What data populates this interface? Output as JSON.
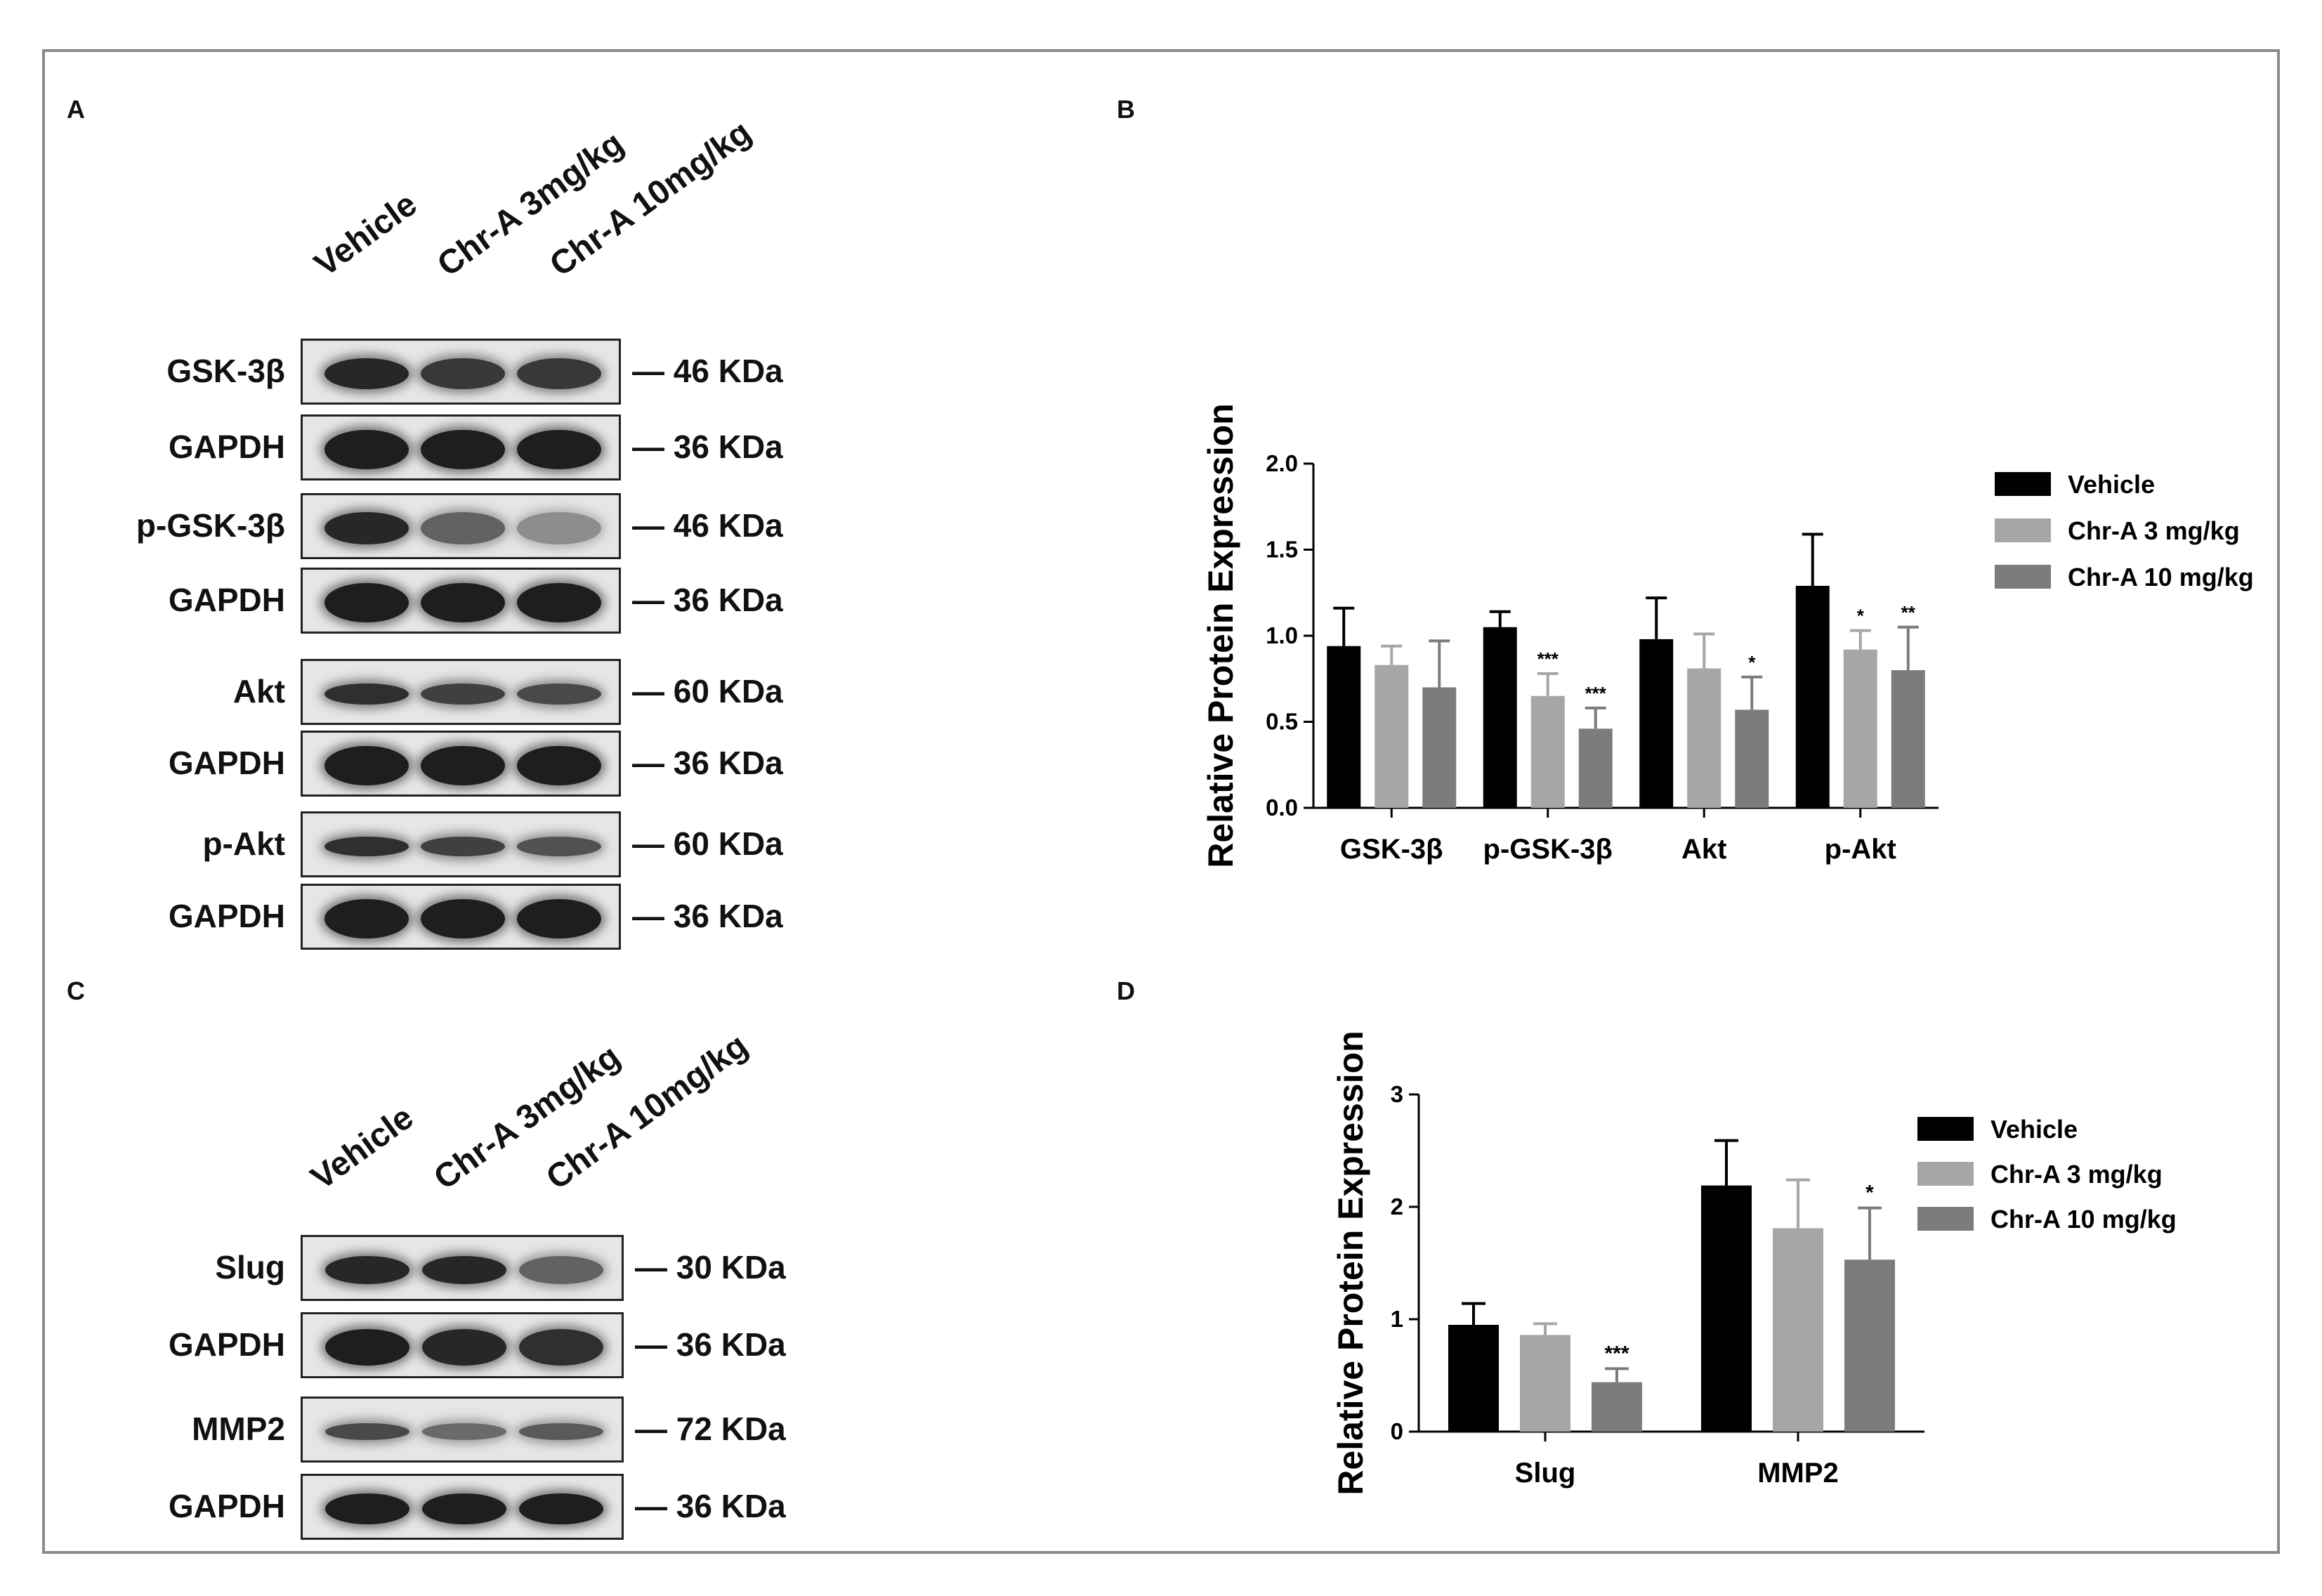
{
  "panels": {
    "A": {
      "letter": "A",
      "lanes": [
        "Vehicle",
        "Chr-A 3mg/kg",
        "Chr-A 10mg/kg"
      ],
      "blots": [
        {
          "protein": "GSK-3β",
          "marker": "46 KDa"
        },
        {
          "protein": "GAPDH",
          "marker": "36 KDa"
        },
        {
          "protein": "p-GSK-3β",
          "marker": "46 KDa"
        },
        {
          "protein": "GAPDH",
          "marker": "36 KDa"
        },
        {
          "protein": "Akt",
          "marker": "60 KDa"
        },
        {
          "protein": "GAPDH",
          "marker": "36 KDa"
        },
        {
          "protein": "p-Akt",
          "marker": "60 KDa"
        },
        {
          "protein": "GAPDH",
          "marker": "36 KDa"
        }
      ]
    },
    "C": {
      "letter": "C",
      "lanes": [
        "Vehicle",
        "Chr-A 3mg/kg",
        "Chr-A 10mg/kg"
      ],
      "blots": [
        {
          "protein": "Slug",
          "marker": "30 KDa"
        },
        {
          "protein": "GAPDH",
          "marker": "36 KDa"
        },
        {
          "protein": "MMP2",
          "marker": "72 KDa"
        },
        {
          "protein": "GAPDH",
          "marker": "36 KDa"
        }
      ]
    },
    "B": {
      "letter": "B"
    },
    "D": {
      "letter": "D"
    }
  },
  "colors": {
    "vehicle": "#000000",
    "chr3": "#a6a6a9",
    "chr10": "#7c7c7e"
  },
  "chart_data": [
    {
      "type": "bar",
      "panel": "B",
      "ylabel": "Relative Protein Expression",
      "xlabel": "",
      "ylim": [
        0,
        2.0
      ],
      "yticks": [
        "0.0",
        "0.5",
        "1.0",
        "1.5",
        "2.0"
      ],
      "categories": [
        "GSK-3β",
        "p-GSK-3β",
        "Akt",
        "p-Akt"
      ],
      "series": [
        {
          "name": "Vehicle",
          "values": [
            0.94,
            1.05,
            0.98,
            1.29
          ],
          "errors": [
            0.22,
            0.09,
            0.24,
            0.3
          ],
          "sig": [
            "",
            "",
            "",
            ""
          ]
        },
        {
          "name": "Chr-A 3 mg/kg",
          "values": [
            0.83,
            0.65,
            0.81,
            0.92
          ],
          "errors": [
            0.11,
            0.13,
            0.2,
            0.11
          ],
          "sig": [
            "",
            "***",
            "",
            "*"
          ]
        },
        {
          "name": "Chr-A 10 mg/kg",
          "values": [
            0.7,
            0.46,
            0.57,
            0.8
          ],
          "errors": [
            0.27,
            0.12,
            0.19,
            0.25
          ],
          "sig": [
            "",
            "***",
            "*",
            "**"
          ]
        }
      ],
      "legend": "top-right"
    },
    {
      "type": "bar",
      "panel": "D",
      "ylabel": "Relative Protein Expression",
      "xlabel": "",
      "ylim": [
        0,
        3
      ],
      "yticks": [
        "0",
        "1",
        "2",
        "3"
      ],
      "categories": [
        "Slug",
        "MMP2"
      ],
      "series": [
        {
          "name": "Vehicle",
          "values": [
            0.95,
            2.19
          ],
          "errors": [
            0.19,
            0.4
          ],
          "sig": [
            "",
            ""
          ]
        },
        {
          "name": "Chr-A 3 mg/kg",
          "values": [
            0.86,
            1.81
          ],
          "errors": [
            0.1,
            0.43
          ],
          "sig": [
            "",
            ""
          ]
        },
        {
          "name": "Chr-A 10 mg/kg",
          "values": [
            0.44,
            1.53
          ],
          "errors": [
            0.12,
            0.46
          ],
          "sig": [
            "***",
            "*"
          ]
        }
      ],
      "legend": "top-right"
    }
  ]
}
